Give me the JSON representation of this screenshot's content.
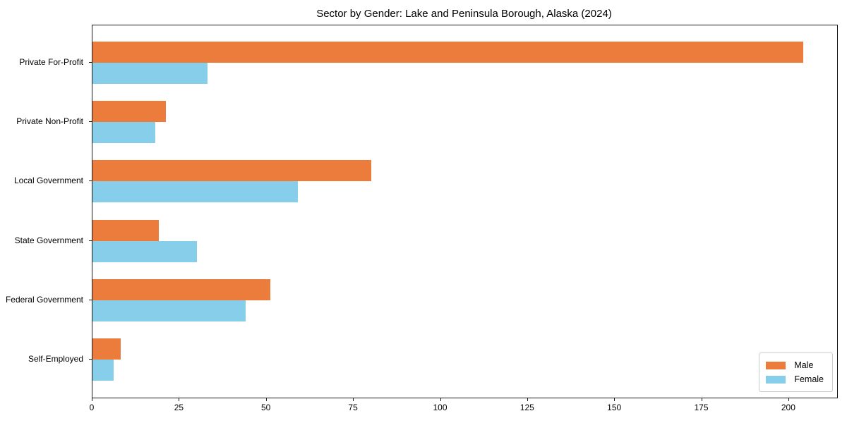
{
  "chart_data": {
    "type": "bar",
    "orientation": "horizontal",
    "title": "Sector by Gender: Lake and Peninsula Borough, Alaska (2024)",
    "categories": [
      "Private For-Profit",
      "Private Non-Profit",
      "Local Government",
      "State Government",
      "Federal Government",
      "Self-Employed"
    ],
    "series": [
      {
        "name": "Male",
        "color": "#ec7c3c",
        "values": [
          204,
          21,
          80,
          19,
          51,
          8
        ]
      },
      {
        "name": "Female",
        "color": "#87ceeb",
        "values": [
          33,
          18,
          59,
          30,
          44,
          6
        ]
      }
    ],
    "xlabel": "",
    "ylabel": "",
    "xlim": [
      0,
      213.8
    ],
    "xticks": [
      0,
      25,
      50,
      75,
      100,
      125,
      150,
      175,
      200
    ],
    "legend_position": "lower right",
    "grid": false,
    "axis_color": "#1a1a1a",
    "background_color": "#ffffff"
  }
}
